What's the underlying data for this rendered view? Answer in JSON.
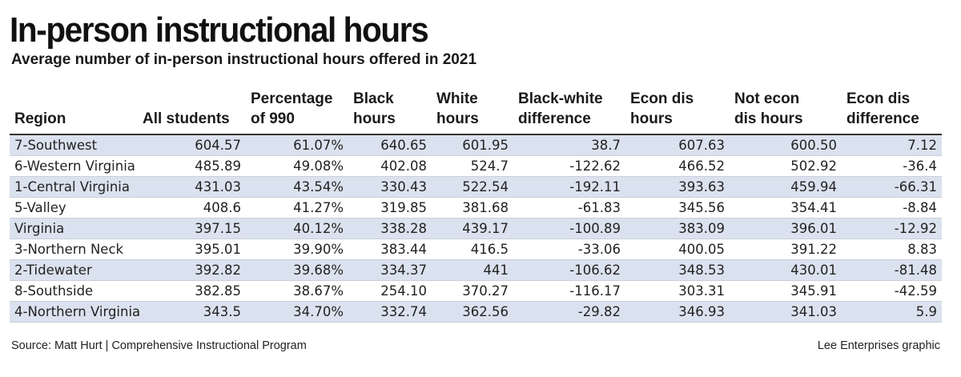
{
  "chart_data": {
    "type": "table",
    "title": "In-person instructional hours",
    "subtitle": "Average number of in-person instructional hours offered in 2021",
    "columns": [
      "Region",
      "All students",
      "Percentage\nof 990",
      "Black\nhours",
      "White\nhours",
      "Black-white\ndifference",
      "Econ dis\nhours",
      "Not econ\ndis hours",
      "Econ dis\ndifference"
    ],
    "rows": [
      [
        "7-Southwest",
        "604.57",
        "61.07%",
        "640.65",
        "601.95",
        "38.7",
        "607.63",
        "600.50",
        "7.12"
      ],
      [
        "6-Western Virginia",
        "485.89",
        "49.08%",
        "402.08",
        "524.7",
        "-122.62",
        "466.52",
        "502.92",
        "-36.4"
      ],
      [
        "1-Central Virginia",
        "431.03",
        "43.54%",
        "330.43",
        "522.54",
        "-192.11",
        "393.63",
        "459.94",
        "-66.31"
      ],
      [
        "5-Valley",
        "408.6",
        "41.27%",
        "319.85",
        "381.68",
        "-61.83",
        "345.56",
        "354.41",
        "-8.84"
      ],
      [
        "Virginia",
        "397.15",
        "40.12%",
        "338.28",
        "439.17",
        "-100.89",
        "383.09",
        "396.01",
        "-12.92"
      ],
      [
        "3-Northern Neck",
        "395.01",
        "39.90%",
        "383.44",
        "416.5",
        "-33.06",
        "400.05",
        "391.22",
        "8.83"
      ],
      [
        "2-Tidewater",
        "392.82",
        "39.68%",
        "334.37",
        "441",
        "-106.62",
        "348.53",
        "430.01",
        "-81.48"
      ],
      [
        "8-Southside",
        "382.85",
        "38.67%",
        "254.10",
        "370.27",
        "-116.17",
        "303.31",
        "345.91",
        "-42.59"
      ],
      [
        "4-Northern Virginia",
        "343.5",
        "34.70%",
        "332.74",
        "362.56",
        "-29.82",
        "346.93",
        "341.03",
        "5.9"
      ]
    ],
    "source": "Source: Matt Hurt | Comprehensive Instructional Program",
    "credit": "Lee Enterprises graphic"
  },
  "colors": {
    "stripe": "#dbe2ef",
    "text": "#1a1a1a"
  }
}
